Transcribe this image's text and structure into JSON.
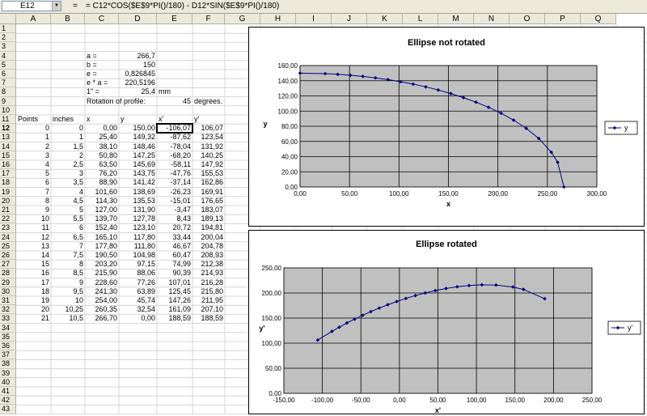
{
  "namebox": "E12",
  "eq": "=",
  "formula": "= C12*COS($E$9*PI()/180) - D12*SIN($E$9*PI()/180)",
  "columns": [
    "A",
    "B",
    "C",
    "D",
    "E",
    "F",
    "G",
    "H",
    "I",
    "J",
    "K",
    "L",
    "M",
    "N",
    "O",
    "P",
    "Q"
  ],
  "rows": [
    "1",
    "2",
    "3",
    "4",
    "5",
    "6",
    "7",
    "8",
    "9",
    "10",
    "11",
    "12",
    "13",
    "14",
    "15",
    "16",
    "17",
    "18",
    "19",
    "20",
    "21",
    "22",
    "23",
    "24",
    "25",
    "26",
    "27",
    "28",
    "29",
    "30",
    "31",
    "32",
    "33",
    "34",
    "35",
    "36",
    "37",
    "38",
    "39",
    "40",
    "41",
    "42",
    "43"
  ],
  "params": [
    {
      "label": "a =",
      "value": "266,7",
      "unit": ""
    },
    {
      "label": "b =",
      "value": "150",
      "unit": ""
    },
    {
      "label": "e =",
      "value": "0,826845",
      "unit": ""
    },
    {
      "label": "e * a =",
      "value": "220,5196",
      "unit": ""
    },
    {
      "label": "1\" =",
      "value": "25,4",
      "unit": "mm"
    }
  ],
  "rotation": {
    "label": "Rotation of profile:",
    "value": "45",
    "unit": "degrees."
  },
  "table_headers": [
    "Points",
    "inches",
    "x",
    "y",
    "x'",
    "y'"
  ],
  "table_rows": [
    [
      "0",
      "0",
      "0,00",
      "150,00",
      "-106,07",
      "106,07"
    ],
    [
      "1",
      "1",
      "25,40",
      "149,32",
      "-87,62",
      "123,54"
    ],
    [
      "2",
      "1,5",
      "38,10",
      "148,46",
      "-78,04",
      "131,92"
    ],
    [
      "3",
      "2",
      "50,80",
      "147,25",
      "-68,20",
      "140,25"
    ],
    [
      "4",
      "2,5",
      "63,50",
      "145,69",
      "-58,11",
      "147,92"
    ],
    [
      "5",
      "3",
      "76,20",
      "143,75",
      "-47,76",
      "155,53"
    ],
    [
      "6",
      "3,5",
      "88,90",
      "141,42",
      "-37,14",
      "162,86"
    ],
    [
      "7",
      "4",
      "101,60",
      "138,69",
      "-26,23",
      "169,91"
    ],
    [
      "8",
      "4,5",
      "114,30",
      "135,53",
      "-15,01",
      "176,65"
    ],
    [
      "9",
      "5",
      "127,00",
      "131,90",
      "-3,47",
      "183,07"
    ],
    [
      "10",
      "5,5",
      "139,70",
      "127,78",
      "8,43",
      "189,13"
    ],
    [
      "11",
      "6",
      "152,40",
      "123,10",
      "20,72",
      "194,81"
    ],
    [
      "12",
      "6,5",
      "165,10",
      "117,80",
      "33,44",
      "200,04"
    ],
    [
      "13",
      "7",
      "177,80",
      "111,80",
      "46,67",
      "204,78"
    ],
    [
      "14",
      "7,5",
      "190,50",
      "104,98",
      "60,47",
      "208,93"
    ],
    [
      "15",
      "8",
      "203,20",
      "97,15",
      "74,99",
      "212,38"
    ],
    [
      "16",
      "8,5",
      "215,90",
      "88,06",
      "90,39",
      "214,93"
    ],
    [
      "17",
      "9",
      "228,60",
      "77,26",
      "107,01",
      "216,28"
    ],
    [
      "18",
      "9,5",
      "241,30",
      "63,89",
      "125,45",
      "215,80"
    ],
    [
      "19",
      "10",
      "254,00",
      "45,74",
      "147,26",
      "211,95"
    ],
    [
      "20",
      "10,25",
      "260,35",
      "32,54",
      "161,09",
      "207,10"
    ],
    [
      "21",
      "10,5",
      "266,70",
      "0,00",
      "188,59",
      "188,59"
    ]
  ],
  "chart_data": [
    {
      "type": "scatter",
      "title": "Ellipse not rotated",
      "xlabel": "x",
      "ylabel": "y",
      "xlim": [
        0,
        300
      ],
      "ylim": [
        0,
        160
      ],
      "xticks": [
        "0,00",
        "50,00",
        "100,00",
        "150,00",
        "200,00",
        "250,00",
        "300,00"
      ],
      "yticks": [
        "0,00",
        "20,00",
        "40,00",
        "60,00",
        "80,00",
        "100,00",
        "120,00",
        "140,00",
        "160,00"
      ],
      "grid": true,
      "legend": "right",
      "series": [
        {
          "name": "y",
          "x": [
            0,
            25.4,
            38.1,
            50.8,
            63.5,
            76.2,
            88.9,
            101.6,
            114.3,
            127,
            139.7,
            152.4,
            165.1,
            177.8,
            190.5,
            203.2,
            215.9,
            228.6,
            241.3,
            254,
            260.35,
            266.7
          ],
          "y": [
            150,
            149.32,
            148.46,
            147.25,
            145.69,
            143.75,
            141.42,
            138.69,
            135.53,
            131.9,
            127.78,
            123.1,
            117.8,
            111.8,
            104.98,
            97.15,
            88.06,
            77.26,
            63.89,
            45.74,
            32.54,
            0
          ]
        }
      ],
      "color": "#000080"
    },
    {
      "type": "scatter",
      "title": "Ellipse rotated",
      "xlabel": "x'",
      "ylabel": "y'",
      "xlim": [
        -150,
        250
      ],
      "ylim": [
        0,
        250
      ],
      "xticks": [
        "-150,00",
        "-100,00",
        "-50,00",
        "0,00",
        "50,00",
        "100,00",
        "150,00",
        "200,00",
        "250,00"
      ],
      "yticks": [
        "0,00",
        "50,00",
        "100,00",
        "150,00",
        "200,00",
        "250,00"
      ],
      "grid": true,
      "legend": "right",
      "series": [
        {
          "name": "y'",
          "x": [
            -106.07,
            -87.62,
            -78.04,
            -68.2,
            -58.11,
            -47.76,
            -37.14,
            -26.23,
            -15.01,
            -3.47,
            8.43,
            20.72,
            33.44,
            46.67,
            60.47,
            74.99,
            90.39,
            107.01,
            125.45,
            147.26,
            161.09,
            188.59
          ],
          "y": [
            106.07,
            123.54,
            131.92,
            140.25,
            147.92,
            155.53,
            162.86,
            169.91,
            176.65,
            183.07,
            189.13,
            194.81,
            200.04,
            204.78,
            208.93,
            212.38,
            214.93,
            216.28,
            215.8,
            211.95,
            207.1,
            188.59
          ]
        }
      ],
      "color": "#000080"
    }
  ]
}
